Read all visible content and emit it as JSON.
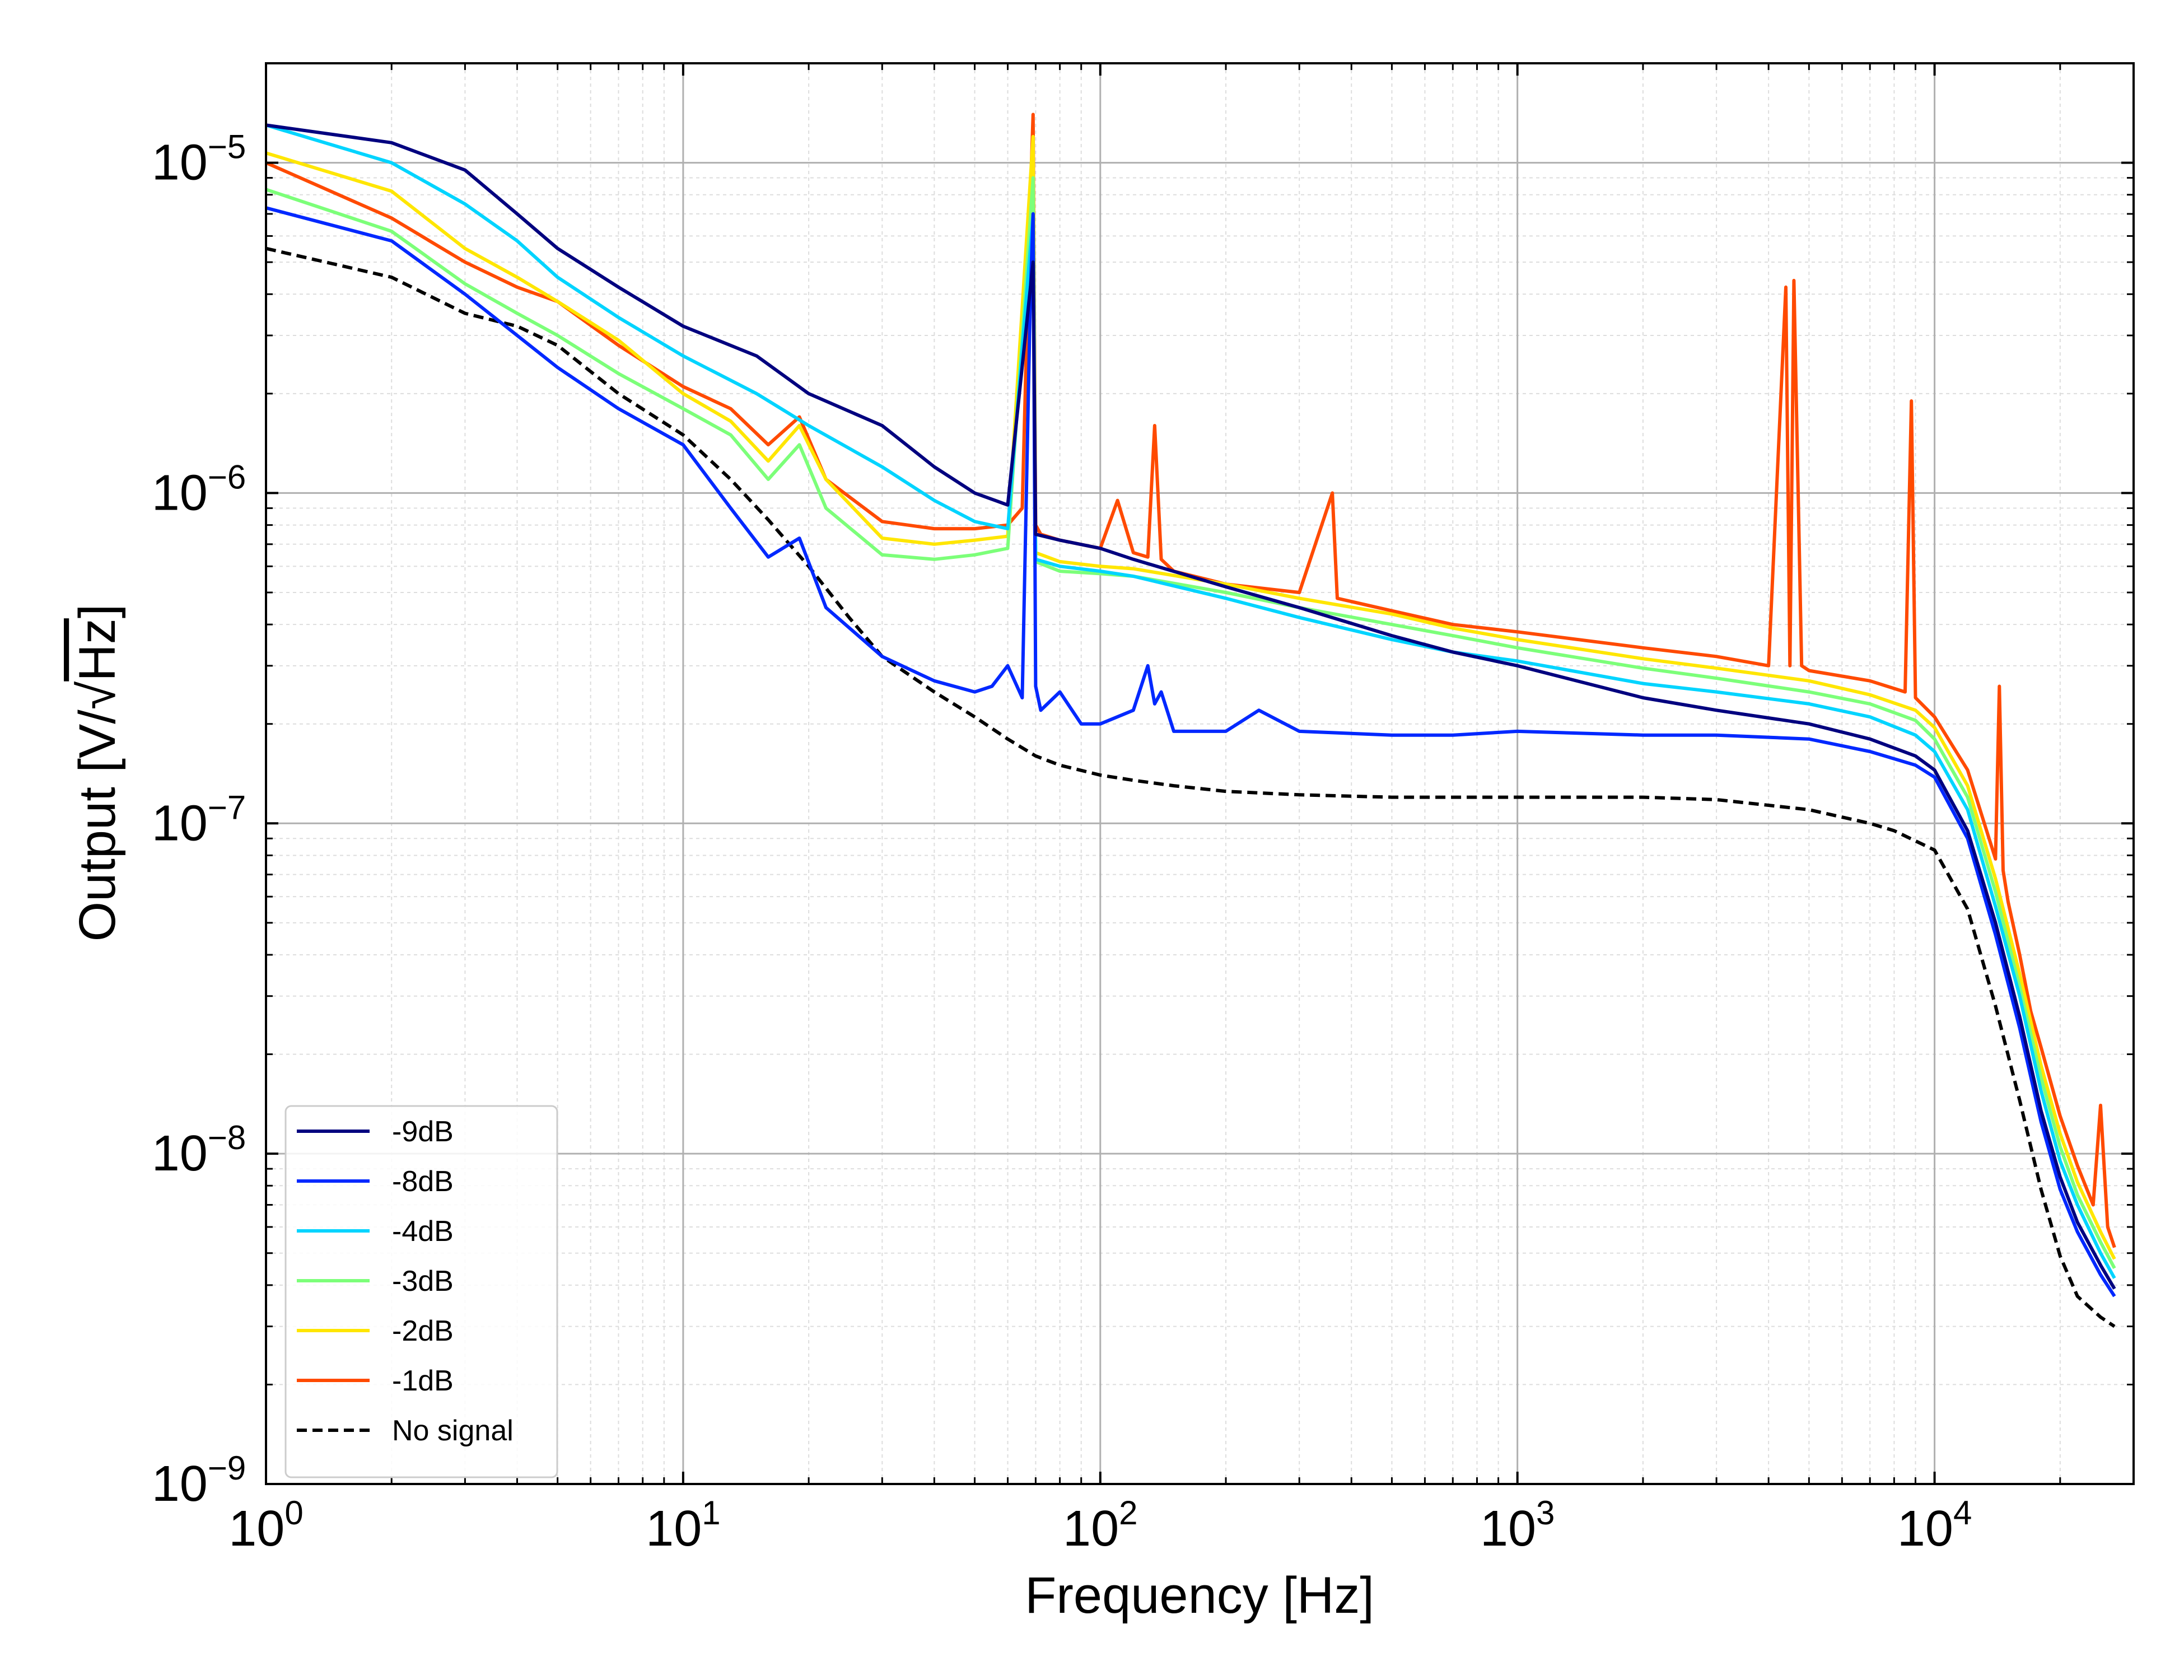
{
  "chart_data": {
    "type": "line",
    "xscale": "log",
    "yscale": "log",
    "xlim": [
      1,
      30000
    ],
    "ylim": [
      1e-09,
      2e-05
    ],
    "xlabel": "Frequency [Hz]",
    "ylabel_prefix": "Output [V/",
    "ylabel_radical": "√",
    "ylabel_radicand": "Hz",
    "ylabel_suffix": "]",
    "grid": true,
    "legend_location": "lower-left",
    "x_ticks": [
      {
        "value": 1,
        "base": "10",
        "exp": "0"
      },
      {
        "value": 10,
        "base": "10",
        "exp": "1"
      },
      {
        "value": 100,
        "base": "10",
        "exp": "2"
      },
      {
        "value": 1000,
        "base": "10",
        "exp": "3"
      },
      {
        "value": 10000,
        "base": "10",
        "exp": "4"
      }
    ],
    "y_ticks": [
      {
        "value": 1e-09,
        "base": "10",
        "exp": "−9"
      },
      {
        "value": 1e-08,
        "base": "10",
        "exp": "−8"
      },
      {
        "value": 1e-07,
        "base": "10",
        "exp": "−7"
      },
      {
        "value": 1e-06,
        "base": "10",
        "exp": "−6"
      },
      {
        "value": 1e-05,
        "base": "10",
        "exp": "−5"
      }
    ],
    "series": [
      {
        "name": "-9dB",
        "color": "#00007f",
        "dash": false,
        "x": [
          1,
          2,
          3,
          4,
          5,
          7,
          10,
          15,
          20,
          30,
          40,
          50,
          60,
          69,
          70,
          80,
          100,
          120,
          200,
          300,
          500,
          700,
          1000,
          2000,
          3000,
          5000,
          7000,
          9000,
          10000,
          12000,
          14000,
          16000,
          18000,
          20000,
          22000,
          25000,
          27000
        ],
        "y": [
          1.3e-05,
          1.15e-05,
          9.5e-06,
          7e-06,
          5.5e-06,
          4.2e-06,
          3.2e-06,
          2.6e-06,
          2e-06,
          1.6e-06,
          1.2e-06,
          1e-06,
          9.2e-07,
          5e-06,
          7.5e-07,
          7.2e-07,
          6.8e-07,
          6.3e-07,
          5.2e-07,
          4.5e-07,
          3.7e-07,
          3.3e-07,
          3e-07,
          2.4e-07,
          2.2e-07,
          2e-07,
          1.8e-07,
          1.6e-07,
          1.45e-07,
          9.5e-08,
          5e-08,
          2.6e-08,
          1.35e-08,
          8.5e-09,
          6.2e-09,
          4.6e-09,
          3.9e-09
        ]
      },
      {
        "name": "-8dB",
        "color": "#0028ff",
        "dash": false,
        "x": [
          1,
          2,
          3,
          4,
          5,
          7,
          10,
          13,
          16,
          19,
          22,
          30,
          40,
          50,
          55,
          60,
          65,
          68,
          69,
          70,
          72,
          80,
          90,
          100,
          120,
          130,
          135,
          140,
          150,
          200,
          240,
          300,
          500,
          700,
          1000,
          2000,
          3000,
          5000,
          7000,
          9000,
          10000,
          12000,
          14000,
          16000,
          18000,
          20000,
          22000,
          25000,
          27000
        ],
        "y": [
          7.3e-06,
          5.8e-06,
          4e-06,
          3e-06,
          2.4e-06,
          1.8e-06,
          1.4e-06,
          9e-07,
          6.4e-07,
          7.3e-07,
          4.5e-07,
          3.2e-07,
          2.7e-07,
          2.5e-07,
          2.6e-07,
          3e-07,
          2.4e-07,
          4e-06,
          7e-06,
          2.6e-07,
          2.2e-07,
          2.5e-07,
          2e-07,
          2e-07,
          2.2e-07,
          3e-07,
          2.3e-07,
          2.5e-07,
          1.9e-07,
          1.9e-07,
          2.2e-07,
          1.9e-07,
          1.85e-07,
          1.85e-07,
          1.9e-07,
          1.85e-07,
          1.85e-07,
          1.8e-07,
          1.65e-07,
          1.5e-07,
          1.38e-07,
          9e-08,
          4.6e-08,
          2.4e-08,
          1.25e-08,
          7.8e-09,
          5.8e-09,
          4.3e-09,
          3.7e-09
        ]
      },
      {
        "name": "-4dB",
        "color": "#00d4ff",
        "dash": false,
        "x": [
          1,
          2,
          3,
          4,
          5,
          7,
          10,
          15,
          20,
          30,
          40,
          50,
          60,
          69,
          70,
          80,
          100,
          120,
          200,
          300,
          500,
          700,
          1000,
          2000,
          3000,
          5000,
          7000,
          9000,
          10000,
          12000,
          14000,
          16000,
          18000,
          20000,
          22000,
          25000,
          27000
        ],
        "y": [
          1.3e-05,
          1e-05,
          7.5e-06,
          5.8e-06,
          4.5e-06,
          3.4e-06,
          2.6e-06,
          2e-06,
          1.6e-06,
          1.2e-06,
          9.5e-07,
          8.2e-07,
          7.8e-07,
          7e-06,
          6.3e-07,
          6e-07,
          5.8e-07,
          5.6e-07,
          4.8e-07,
          4.2e-07,
          3.6e-07,
          3.3e-07,
          3.1e-07,
          2.65e-07,
          2.5e-07,
          2.3e-07,
          2.1e-07,
          1.85e-07,
          1.65e-07,
          1.1e-07,
          5.6e-08,
          3e-08,
          1.55e-08,
          9.5e-09,
          7e-09,
          5e-09,
          4.2e-09
        ]
      },
      {
        "name": "-3dB",
        "color": "#7cff79",
        "dash": false,
        "x": [
          1,
          2,
          3,
          4,
          5,
          7,
          10,
          13,
          16,
          19,
          22,
          30,
          40,
          50,
          60,
          69,
          70,
          80,
          100,
          120,
          200,
          300,
          500,
          700,
          1000,
          2000,
          3000,
          5000,
          7000,
          9000,
          10000,
          12000,
          14000,
          16000,
          18000,
          20000,
          22000,
          25000,
          27000
        ],
        "y": [
          8.3e-06,
          6.2e-06,
          4.3e-06,
          3.5e-06,
          3e-06,
          2.3e-06,
          1.8e-06,
          1.5e-06,
          1.1e-06,
          1.4e-06,
          9e-07,
          6.5e-07,
          6.3e-07,
          6.5e-07,
          6.8e-07,
          9e-06,
          6.2e-07,
          5.8e-07,
          5.7e-07,
          5.6e-07,
          5e-07,
          4.5e-07,
          4e-07,
          3.7e-07,
          3.4e-07,
          2.95e-07,
          2.75e-07,
          2.5e-07,
          2.3e-07,
          2.05e-07,
          1.8e-07,
          1.2e-07,
          6.2e-08,
          3.2e-08,
          1.7e-08,
          1.05e-08,
          7.5e-09,
          5.4e-09,
          4.5e-09
        ]
      },
      {
        "name": "-2dB",
        "color": "#ffe600",
        "dash": false,
        "x": [
          1,
          2,
          3,
          4,
          5,
          7,
          10,
          13,
          16,
          19,
          22,
          30,
          40,
          50,
          60,
          69,
          70,
          80,
          100,
          120,
          200,
          300,
          500,
          700,
          1000,
          2000,
          3000,
          5000,
          7000,
          9000,
          10000,
          12000,
          14000,
          16000,
          18000,
          20000,
          22000,
          25000,
          27000
        ],
        "y": [
          1.07e-05,
          8.2e-06,
          5.5e-06,
          4.5e-06,
          3.8e-06,
          2.9e-06,
          2e-06,
          1.65e-06,
          1.25e-06,
          1.6e-06,
          1.1e-06,
          7.3e-07,
          7e-07,
          7.2e-07,
          7.4e-07,
          1.2e-05,
          6.6e-07,
          6.2e-07,
          6e-07,
          5.9e-07,
          5.3e-07,
          4.8e-07,
          4.3e-07,
          3.9e-07,
          3.6e-07,
          3.15e-07,
          2.95e-07,
          2.7e-07,
          2.45e-07,
          2.2e-07,
          1.95e-07,
          1.3e-07,
          6.8e-08,
          3.5e-08,
          1.85e-08,
          1.15e-08,
          8.2e-09,
          5.8e-09,
          4.8e-09
        ]
      },
      {
        "name": "-1dB",
        "color": "#ff4a00",
        "dash": false,
        "x": [
          1,
          2,
          3,
          4,
          5,
          7,
          10,
          13,
          16,
          19,
          22,
          30,
          40,
          50,
          60,
          65,
          68,
          69,
          70,
          72,
          80,
          100,
          110,
          120,
          130,
          135,
          140,
          150,
          200,
          300,
          360,
          370,
          500,
          700,
          1000,
          2000,
          3000,
          4000,
          4400,
          4500,
          4600,
          4800,
          5000,
          7000,
          8500,
          8800,
          9000,
          10000,
          12000,
          14000,
          14300,
          14600,
          15000,
          16000,
          17000,
          18000,
          20000,
          22000,
          24000,
          25000,
          26000,
          27000
        ],
        "y": [
          1e-05,
          6.8e-06,
          5e-06,
          4.2e-06,
          3.8e-06,
          2.8e-06,
          2.1e-06,
          1.8e-06,
          1.4e-06,
          1.7e-06,
          1.1e-06,
          8.2e-07,
          7.8e-07,
          7.8e-07,
          8e-07,
          9e-07,
          8e-06,
          1.4e-05,
          8e-07,
          7.5e-07,
          7.2e-07,
          6.8e-07,
          9.5e-07,
          6.6e-07,
          6.4e-07,
          1.6e-06,
          6.3e-07,
          5.8e-07,
          5.3e-07,
          5e-07,
          1e-06,
          4.8e-07,
          4.4e-07,
          4e-07,
          3.8e-07,
          3.4e-07,
          3.2e-07,
          3e-07,
          4.2e-06,
          3e-07,
          4.4e-06,
          3e-07,
          2.9e-07,
          2.7e-07,
          2.5e-07,
          1.9e-06,
          2.4e-07,
          2.1e-07,
          1.45e-07,
          7.8e-08,
          2.6e-07,
          7.2e-08,
          5.8e-08,
          4e-08,
          2.7e-08,
          2.1e-08,
          1.3e-08,
          9.2e-09,
          7e-09,
          1.4e-08,
          6e-09,
          5.2e-09
        ]
      },
      {
        "name": "No signal",
        "color": "#000000",
        "dash": true,
        "x": [
          1,
          2,
          3,
          4,
          5,
          7,
          10,
          13,
          16,
          20,
          25,
          30,
          40,
          50,
          60,
          70,
          80,
          100,
          120,
          150,
          200,
          300,
          500,
          700,
          1000,
          2000,
          3000,
          5000,
          7000,
          8000,
          10000,
          12000,
          14000,
          16000,
          18000,
          20000,
          22000,
          25000,
          27000
        ],
        "y": [
          5.5e-06,
          4.5e-06,
          3.5e-06,
          3.2e-06,
          2.8e-06,
          2e-06,
          1.5e-06,
          1.1e-06,
          8.3e-07,
          6e-07,
          4.2e-07,
          3.2e-07,
          2.5e-07,
          2.1e-07,
          1.8e-07,
          1.6e-07,
          1.5e-07,
          1.4e-07,
          1.35e-07,
          1.3e-07,
          1.25e-07,
          1.22e-07,
          1.2e-07,
          1.2e-07,
          1.2e-07,
          1.2e-07,
          1.18e-07,
          1.1e-07,
          1e-07,
          9.5e-08,
          8.3e-08,
          5.5e-08,
          2.8e-08,
          1.45e-08,
          7.8e-09,
          4.9e-09,
          3.7e-09,
          3.2e-09,
          3e-09
        ]
      }
    ]
  }
}
